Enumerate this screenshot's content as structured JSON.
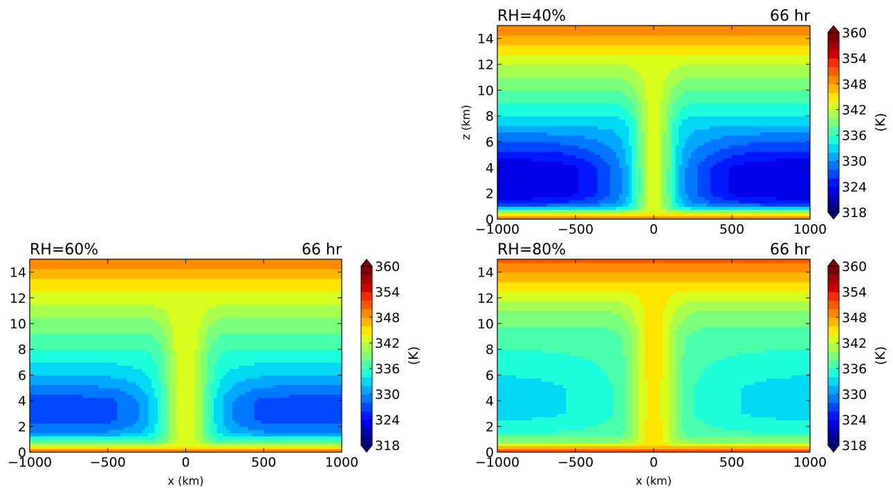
{
  "colorscale": {
    "ticks": [
      "318",
      "324",
      "330",
      "336",
      "342",
      "348",
      "354",
      "360"
    ],
    "min": 318,
    "max": 360,
    "step": 2,
    "unit_label": "(K)",
    "colors": [
      "#00007f",
      "#0000b0",
      "#0000e6",
      "#0018ff",
      "#0048ff",
      "#0078ff",
      "#00a8ff",
      "#00d8f4",
      "#1cffda",
      "#4affac",
      "#7aff7c",
      "#a8ff4e",
      "#d8ff1e",
      "#ffe500",
      "#ffb700",
      "#ff8a00",
      "#ff5a00",
      "#f92b00",
      "#cc0000",
      "#a30000",
      "#7f0000"
    ]
  },
  "chart_data": [
    {
      "type": "heatmap",
      "id": "rh40",
      "label_left": "RH=40%",
      "label_right": "66 hr",
      "xlabel": "",
      "ylabel": "z (km)",
      "xlim": [
        -1000,
        1000
      ],
      "ylim": [
        0,
        15
      ],
      "xticks": [
        "−1000",
        "−500",
        "0",
        "500",
        "1000"
      ],
      "yticks": [
        "0",
        "2",
        "4",
        "6",
        "8",
        "10",
        "12",
        "14"
      ],
      "has_colorbar": true,
      "field": {
        "profile": [
          [
            0,
            350
          ],
          [
            0.3,
            347
          ],
          [
            0.7,
            338
          ],
          [
            1.2,
            326
          ],
          [
            2,
            322
          ],
          [
            4,
            322
          ],
          [
            6,
            328
          ],
          [
            8,
            334
          ],
          [
            10,
            338
          ],
          [
            12,
            342
          ],
          [
            14,
            347
          ],
          [
            15,
            350
          ]
        ],
        "core_halfwidth_km": 120,
        "core_theta": 343,
        "moist_halfwidth_km": 380,
        "moist_theta": 333
      }
    },
    {
      "type": "heatmap",
      "id": "rh60",
      "label_left": "RH=60%",
      "label_right": "66 hr",
      "xlabel": "x (km)",
      "ylabel": "",
      "xlim": [
        -1000,
        1000
      ],
      "ylim": [
        0,
        15
      ],
      "xticks": [
        "−1000",
        "−500",
        "0",
        "500",
        "1000"
      ],
      "yticks": [
        "0",
        "2",
        "4",
        "6",
        "8",
        "10",
        "12",
        "14"
      ],
      "has_colorbar": true,
      "field": {
        "profile": [
          [
            0,
            350
          ],
          [
            0.3,
            347
          ],
          [
            0.8,
            338
          ],
          [
            1.5,
            330
          ],
          [
            2.5,
            327
          ],
          [
            4,
            327
          ],
          [
            6,
            332
          ],
          [
            8,
            336
          ],
          [
            10,
            339
          ],
          [
            12,
            343
          ],
          [
            14,
            347
          ],
          [
            15,
            350
          ]
        ],
        "core_halfwidth_km": 130,
        "core_theta": 344,
        "moist_halfwidth_km": 300,
        "moist_theta": 336
      }
    },
    {
      "type": "heatmap",
      "id": "rh80",
      "label_left": "RH=80%",
      "label_right": "66 hr",
      "xlabel": "x (km)",
      "ylabel": "",
      "xlim": [
        -1000,
        1000
      ],
      "ylim": [
        0,
        15
      ],
      "xticks": [
        "−1000",
        "−500",
        "0",
        "500",
        "1000"
      ],
      "yticks": [
        "0",
        "2",
        "4",
        "6",
        "8",
        "10",
        "12",
        "14"
      ],
      "has_colorbar": true,
      "field": {
        "profile": [
          [
            0,
            352
          ],
          [
            0.3,
            348
          ],
          [
            0.8,
            340
          ],
          [
            1.5,
            336
          ],
          [
            3,
            333
          ],
          [
            5,
            333
          ],
          [
            7,
            335
          ],
          [
            9,
            337
          ],
          [
            11,
            340
          ],
          [
            13,
            345
          ],
          [
            15,
            351
          ]
        ],
        "core_halfwidth_km": 140,
        "core_theta": 345,
        "moist_halfwidth_km": 500,
        "moist_theta": 337
      }
    }
  ]
}
